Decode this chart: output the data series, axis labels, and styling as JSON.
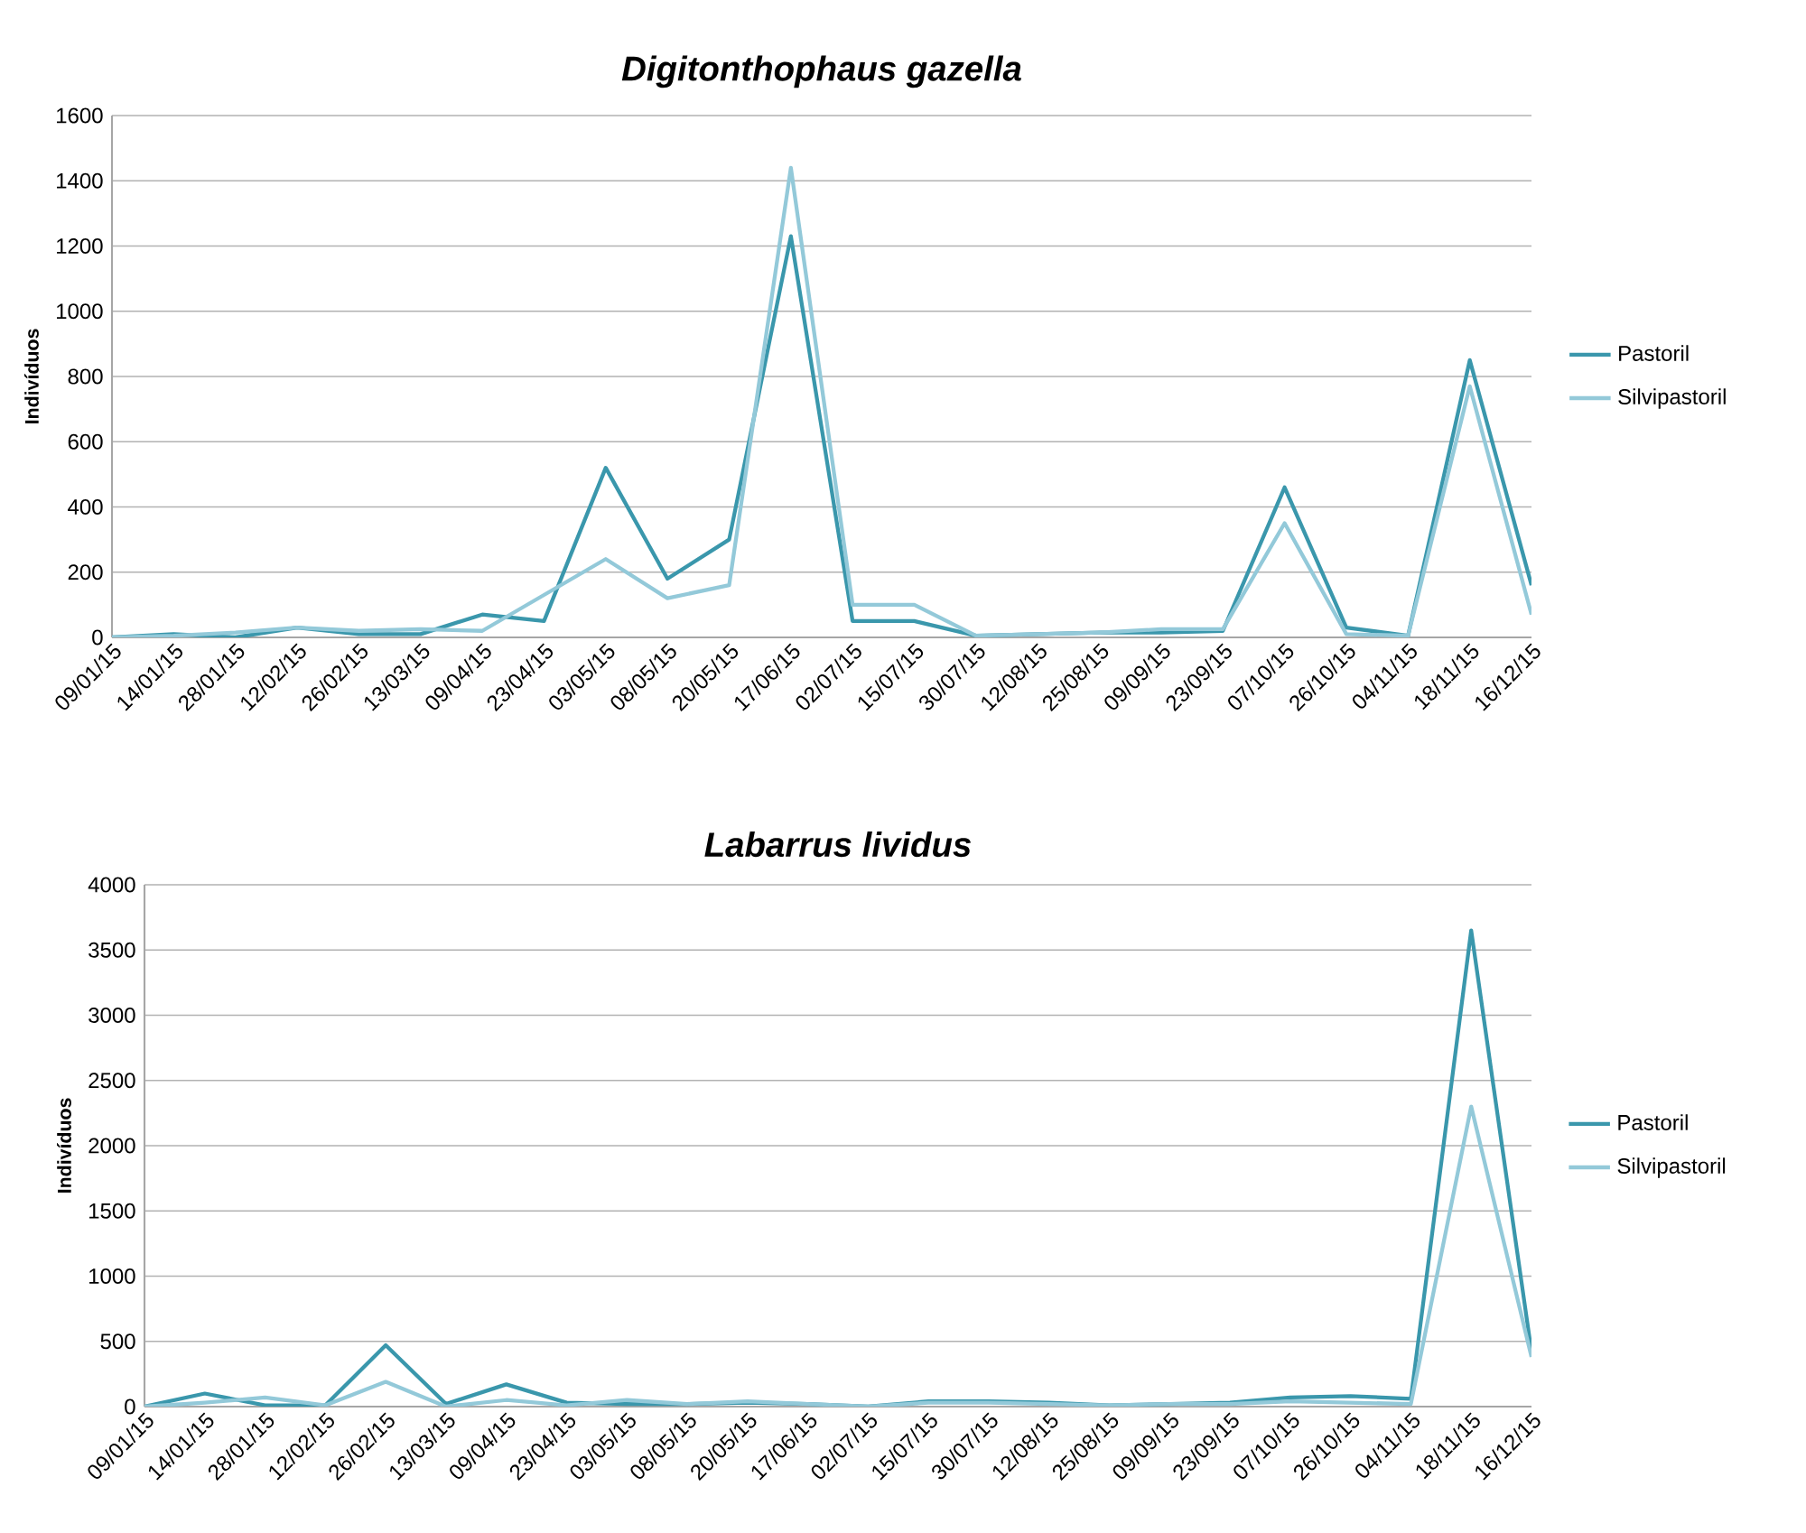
{
  "chart_data": [
    {
      "type": "line",
      "title": "Digitonthophaus gazella",
      "ylabel": "Indivíduos",
      "categories": [
        "09/01/15",
        "14/01/15",
        "28/01/15",
        "12/02/15",
        "26/02/15",
        "13/03/15",
        "09/04/15",
        "23/04/15",
        "03/05/15",
        "08/05/15",
        "20/05/15",
        "17/06/15",
        "02/07/15",
        "15/07/15",
        "30/07/15",
        "12/08/15",
        "25/08/15",
        "09/09/15",
        "23/09/15",
        "07/10/15",
        "26/10/15",
        "04/11/15",
        "18/11/15",
        "16/12/15"
      ],
      "series": [
        {
          "name": "Pastoril",
          "color": "#3a97ac",
          "values": [
            0,
            10,
            0,
            30,
            10,
            10,
            70,
            50,
            520,
            180,
            300,
            1230,
            50,
            50,
            5,
            10,
            15,
            15,
            20,
            460,
            30,
            5,
            850,
            160
          ]
        },
        {
          "name": "Silvipastoril",
          "color": "#93c9d9",
          "values": [
            0,
            5,
            15,
            30,
            20,
            25,
            20,
            130,
            240,
            120,
            160,
            1440,
            100,
            100,
            5,
            10,
            15,
            25,
            25,
            350,
            10,
            5,
            770,
            70
          ]
        }
      ],
      "ylim": [
        0,
        1600
      ],
      "yticks": [
        0,
        200,
        400,
        600,
        800,
        1000,
        1200,
        1400,
        1600
      ],
      "grid": "y",
      "legend": "right"
    },
    {
      "type": "line",
      "title": "Labarrus lividus",
      "ylabel": "Indivíduos",
      "categories": [
        "09/01/15",
        "14/01/15",
        "28/01/15",
        "12/02/15",
        "26/02/15",
        "13/03/15",
        "09/04/15",
        "23/04/15",
        "03/05/15",
        "08/05/15",
        "20/05/15",
        "17/06/15",
        "02/07/15",
        "15/07/15",
        "30/07/15",
        "12/08/15",
        "25/08/15",
        "09/09/15",
        "23/09/15",
        "07/10/15",
        "26/10/15",
        "04/11/15",
        "18/11/15",
        "16/12/15"
      ],
      "series": [
        {
          "name": "Pastoril",
          "color": "#3a97ac",
          "values": [
            0,
            100,
            10,
            10,
            470,
            20,
            170,
            30,
            20,
            20,
            30,
            20,
            0,
            40,
            40,
            30,
            10,
            20,
            30,
            70,
            80,
            60,
            3650,
            420
          ]
        },
        {
          "name": "Silvipastoril",
          "color": "#93c9d9",
          "values": [
            0,
            30,
            70,
            10,
            190,
            0,
            50,
            10,
            50,
            20,
            40,
            20,
            0,
            30,
            30,
            20,
            10,
            20,
            20,
            40,
            30,
            20,
            2300,
            380
          ]
        }
      ],
      "ylim": [
        0,
        4000
      ],
      "yticks": [
        0,
        500,
        1000,
        1500,
        2000,
        2500,
        3000,
        3500,
        4000
      ],
      "grid": "y",
      "legend": "right"
    }
  ]
}
